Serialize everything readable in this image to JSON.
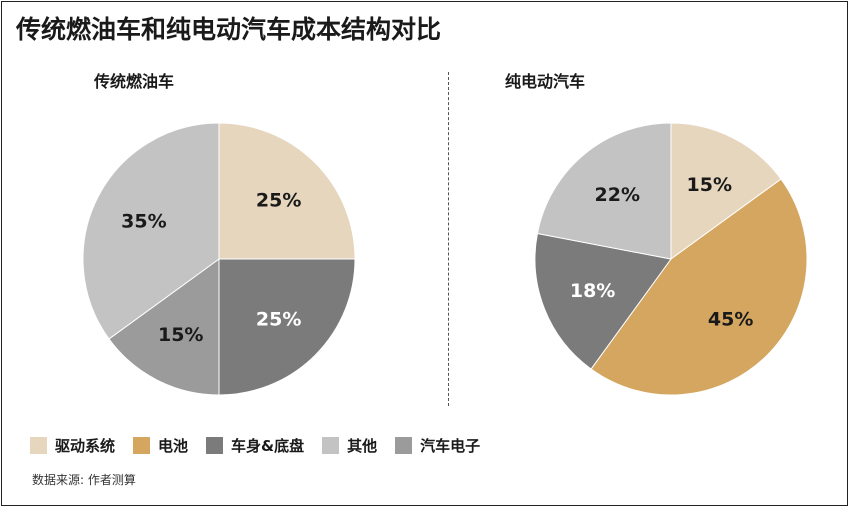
{
  "title": "传统燃油车和纯电动汽车成本结构对比",
  "source": "数据来源: 作者测算",
  "legend": [
    {
      "label": "驱动系统",
      "color": "#E6D6BD"
    },
    {
      "label": "电池",
      "color": "#D4A65F"
    },
    {
      "label": "车身&底盘",
      "color": "#7B7B7B"
    },
    {
      "label": "其他",
      "color": "#C3C3C3"
    },
    {
      "label": "汽车电子",
      "color": "#9B9B9B"
    }
  ],
  "chart_data": [
    {
      "type": "pie",
      "title": "传统燃油车",
      "slices": [
        {
          "category": "驱动系统",
          "value": 25,
          "label": "25%",
          "color": "#E6D6BD",
          "text_color": "#1a1a1a"
        },
        {
          "category": "车身&底盘",
          "value": 25,
          "label": "25%",
          "color": "#7B7B7B",
          "text_color": "#ffffff"
        },
        {
          "category": "汽车电子",
          "value": 15,
          "label": "15%",
          "color": "#9B9B9B",
          "text_color": "#1a1a1a"
        },
        {
          "category": "其他",
          "value": 35,
          "label": "35%",
          "color": "#C3C3C3",
          "text_color": "#1a1a1a"
        }
      ]
    },
    {
      "type": "pie",
      "title": "纯电动汽车",
      "slices": [
        {
          "category": "驱动系统",
          "value": 15,
          "label": "15%",
          "color": "#E6D6BD",
          "text_color": "#1a1a1a"
        },
        {
          "category": "电池",
          "value": 45,
          "label": "45%",
          "color": "#D4A65F",
          "text_color": "#1a1a1a"
        },
        {
          "category": "车身&底盘",
          "value": 18,
          "label": "18%",
          "color": "#7B7B7B",
          "text_color": "#ffffff"
        },
        {
          "category": "其他",
          "value": 22,
          "label": "22%",
          "color": "#C3C3C3",
          "text_color": "#1a1a1a"
        }
      ]
    }
  ]
}
